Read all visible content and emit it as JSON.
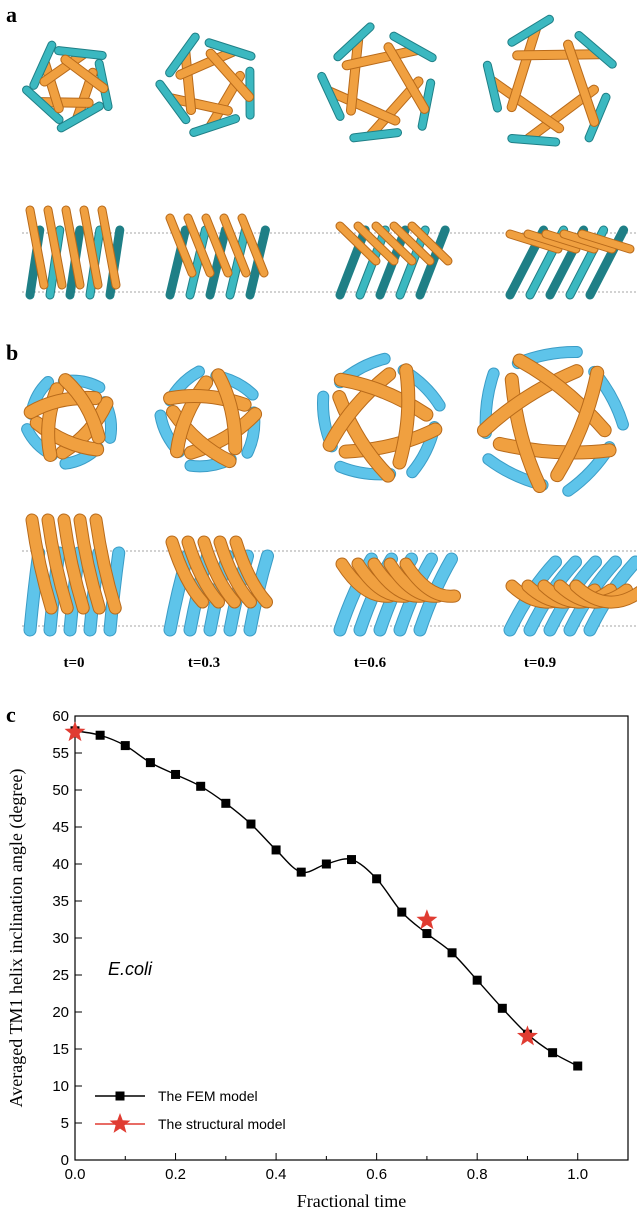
{
  "panels": {
    "a_label": "a",
    "b_label": "b",
    "c_label": "c",
    "time_labels": [
      "t=0",
      "t=0.3",
      "t=0.6",
      "t=0.9"
    ]
  },
  "colors": {
    "orange": "#F0A040",
    "orange_dark": "#B86A1A",
    "teal": "#3BB8C0",
    "teal_dark": "#1F7F86",
    "sky": "#5EC4EA",
    "star": "#E03C32"
  },
  "chart_data": {
    "type": "line",
    "xlabel": "Fractional time",
    "ylabel": "Averaged TM1 helix inclination angle (degree)",
    "xlim": [
      0.0,
      1.1
    ],
    "ylim": [
      0,
      60
    ],
    "xticks": [
      "0.0",
      "0.2",
      "0.4",
      "0.6",
      "0.8",
      "1.0"
    ],
    "yticks": [
      "0",
      "5",
      "10",
      "15",
      "20",
      "25",
      "30",
      "35",
      "40",
      "45",
      "50",
      "55",
      "60"
    ],
    "annotation": "E.coli",
    "legend_position": "bottom-left",
    "series": [
      {
        "name": "The FEM model",
        "marker": "square",
        "x": [
          0.0,
          0.05,
          0.1,
          0.15,
          0.2,
          0.25,
          0.3,
          0.35,
          0.4,
          0.45,
          0.5,
          0.55,
          0.6,
          0.65,
          0.7,
          0.75,
          0.8,
          0.85,
          0.9,
          0.95,
          1.0
        ],
        "y": [
          58.0,
          57.4,
          56.0,
          53.7,
          52.1,
          50.5,
          48.2,
          45.4,
          41.9,
          38.9,
          40.0,
          40.6,
          38.0,
          33.5,
          30.6,
          28.0,
          24.3,
          20.5,
          17.0,
          14.5,
          12.7
        ]
      },
      {
        "name": "The structural model",
        "marker": "star",
        "x": [
          0.0,
          0.7,
          0.9
        ],
        "y": [
          57.8,
          32.4,
          16.7
        ]
      }
    ]
  }
}
